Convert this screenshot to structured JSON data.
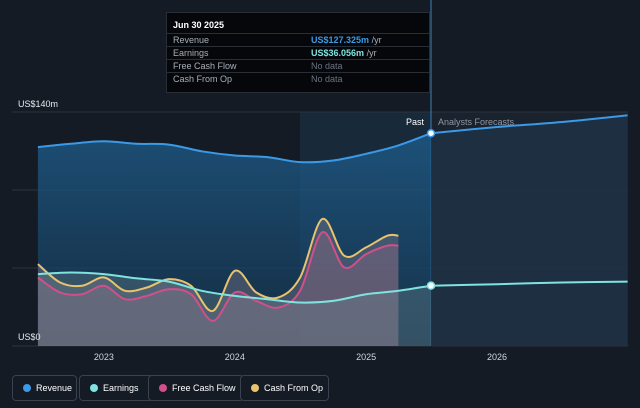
{
  "chart_data": {
    "type": "area",
    "y_axis_labels": {
      "top": "US$140m",
      "bottom": "US$0"
    },
    "ylim": [
      0,
      140
    ],
    "x_ticks": [
      "2023",
      "2024",
      "2025",
      "2026"
    ],
    "past_label": "Past",
    "forecast_label": "Analysts Forecasts",
    "series": [
      {
        "name": "Revenue",
        "color": "#3a9ae8",
        "x": [
          "2022-07-01",
          "2022-10-01",
          "2023-01-01",
          "2023-04-01",
          "2023-07-01",
          "2023-10-01",
          "2024-01-01",
          "2024-04-01",
          "2024-07-01",
          "2024-10-01",
          "2025-01-01",
          "2025-04-01",
          "2025-07-01"
        ],
        "values": [
          119,
          121,
          122.5,
          121,
          120.5,
          116.5,
          114,
          113,
          110,
          111,
          115,
          120,
          127.3
        ]
      },
      {
        "name": "Revenue forecast",
        "color": "#3a9ae8",
        "x": [
          "2025-07-01",
          "2026-01-01",
          "2026-07-01",
          "2026-12-31"
        ],
        "values": [
          127.3,
          131,
          134,
          138
        ]
      },
      {
        "name": "Earnings",
        "color": "#7fe3e0",
        "x": [
          "2022-07-01",
          "2022-10-01",
          "2023-01-01",
          "2023-04-01",
          "2023-07-01",
          "2023-10-01",
          "2024-01-01",
          "2024-04-01",
          "2024-07-01",
          "2024-10-01",
          "2025-01-01",
          "2025-04-01",
          "2025-07-01"
        ],
        "values": [
          43,
          44,
          43,
          40.5,
          38.5,
          33,
          30,
          28,
          26,
          27,
          31,
          33,
          36.1
        ]
      },
      {
        "name": "Earnings forecast",
        "color": "#7fe3e0",
        "x": [
          "2025-07-01",
          "2026-01-01",
          "2026-07-01",
          "2026-12-31"
        ],
        "values": [
          36.1,
          37,
          38,
          38.5
        ]
      },
      {
        "name": "Free Cash Flow",
        "color": "#d24f8a",
        "x": [
          "2022-07-01",
          "2022-09-01",
          "2022-11-01",
          "2023-01-01",
          "2023-03-01",
          "2023-05-01",
          "2023-07-01",
          "2023-09-01",
          "2023-11-01",
          "2024-01-01",
          "2024-03-01",
          "2024-05-01",
          "2024-07-01",
          "2024-09-01",
          "2024-11-01",
          "2025-01-01",
          "2025-03-01",
          "2025-04-01"
        ],
        "values": [
          41,
          32,
          31,
          36,
          28,
          30,
          34,
          31,
          15,
          32,
          27,
          23,
          33,
          68,
          47,
          55,
          60,
          60
        ]
      },
      {
        "name": "Cash From Op",
        "color": "#e9c36d",
        "x": [
          "2022-07-01",
          "2022-09-01",
          "2022-11-01",
          "2023-01-01",
          "2023-03-01",
          "2023-05-01",
          "2023-07-01",
          "2023-09-01",
          "2023-11-01",
          "2024-01-01",
          "2024-03-01",
          "2024-05-01",
          "2024-07-01",
          "2024-09-01",
          "2024-11-01",
          "2025-01-01",
          "2025-03-01",
          "2025-04-01"
        ],
        "values": [
          49,
          38,
          36,
          41,
          33,
          35,
          40,
          36,
          21,
          45,
          32,
          29,
          41,
          76,
          54,
          59,
          66,
          66
        ]
      }
    ]
  },
  "tooltip": {
    "date": "Jun 30 2025",
    "rows": [
      {
        "label": "Revenue",
        "value": "US$127.325m",
        "unit": "/yr",
        "color": "#3a9ae8"
      },
      {
        "label": "Earnings",
        "value": "US$36.056m",
        "unit": "/yr",
        "color": "#7fe3e0"
      },
      {
        "label": "Free Cash Flow",
        "value": "No data",
        "unit": "",
        "color": "#6b7480"
      },
      {
        "label": "Cash From Op",
        "value": "No data",
        "unit": "",
        "color": "#6b7480"
      }
    ]
  },
  "legend": [
    {
      "label": "Revenue",
      "color": "#3a9ae8"
    },
    {
      "label": "Earnings",
      "color": "#7fe3e0"
    },
    {
      "label": "Free Cash Flow",
      "color": "#d24f8a"
    },
    {
      "label": "Cash From Op",
      "color": "#e9c36d"
    }
  ]
}
